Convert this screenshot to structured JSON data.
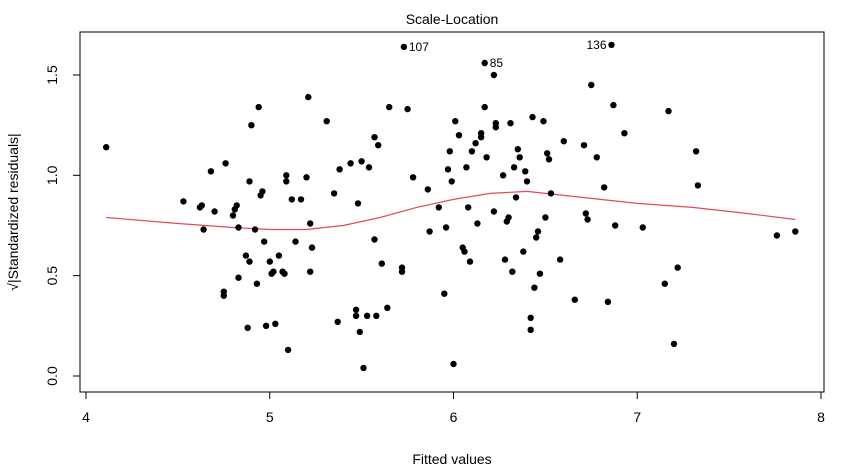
{
  "chart_data": {
    "type": "scatter",
    "title": "Scale-Location",
    "xlabel": "Fitted values",
    "ylabel": "√|Standardized residuals|",
    "xlim": [
      4,
      8
    ],
    "ylim": [
      0,
      1.7
    ],
    "xticks": [
      "4",
      "5",
      "6",
      "7",
      "8"
    ],
    "yticks": [
      "0.0",
      "0.5",
      "1.0",
      "1.5"
    ],
    "grid": false,
    "point_color": "#000000",
    "smooth_color": "#e0495a",
    "points": [
      [
        4.11,
        1.14
      ],
      [
        4.53,
        0.87
      ],
      [
        4.62,
        0.84
      ],
      [
        4.63,
        0.85
      ],
      [
        4.64,
        0.73
      ],
      [
        4.68,
        1.02
      ],
      [
        4.7,
        0.82
      ],
      [
        4.75,
        0.42
      ],
      [
        4.75,
        0.4
      ],
      [
        4.76,
        1.06
      ],
      [
        4.8,
        0.8
      ],
      [
        4.81,
        0.83
      ],
      [
        4.82,
        0.85
      ],
      [
        4.83,
        0.74
      ],
      [
        4.83,
        0.49
      ],
      [
        4.87,
        0.6
      ],
      [
        4.88,
        0.24
      ],
      [
        4.89,
        0.57
      ],
      [
        4.89,
        0.97
      ],
      [
        4.9,
        1.25
      ],
      [
        4.92,
        0.73
      ],
      [
        4.93,
        0.46
      ],
      [
        4.94,
        1.34
      ],
      [
        4.95,
        0.9
      ],
      [
        4.96,
        0.92
      ],
      [
        4.97,
        0.67
      ],
      [
        4.98,
        0.25
      ],
      [
        5.0,
        0.57
      ],
      [
        5.01,
        0.51
      ],
      [
        5.02,
        0.52
      ],
      [
        5.03,
        0.26
      ],
      [
        5.05,
        0.6
      ],
      [
        5.07,
        0.52
      ],
      [
        5.08,
        0.51
      ],
      [
        5.09,
        1.0
      ],
      [
        5.09,
        0.97
      ],
      [
        5.1,
        0.13
      ],
      [
        5.12,
        0.88
      ],
      [
        5.14,
        0.67
      ],
      [
        5.17,
        0.88
      ],
      [
        5.2,
        0.99
      ],
      [
        5.21,
        1.39
      ],
      [
        5.22,
        0.76
      ],
      [
        5.22,
        0.52
      ],
      [
        5.23,
        0.64
      ],
      [
        5.31,
        1.27
      ],
      [
        5.35,
        0.91
      ],
      [
        5.37,
        0.27
      ],
      [
        5.38,
        1.03
      ],
      [
        5.44,
        1.06
      ],
      [
        5.47,
        0.3
      ],
      [
        5.47,
        0.33
      ],
      [
        5.48,
        0.86
      ],
      [
        5.49,
        0.22
      ],
      [
        5.5,
        1.07
      ],
      [
        5.51,
        0.04
      ],
      [
        5.53,
        0.3
      ],
      [
        5.54,
        1.04
      ],
      [
        5.57,
        0.68
      ],
      [
        5.57,
        1.19
      ],
      [
        5.58,
        0.3
      ],
      [
        5.59,
        1.15
      ],
      [
        5.61,
        0.56
      ],
      [
        5.64,
        0.34
      ],
      [
        5.65,
        1.34
      ],
      [
        5.72,
        0.54
      ],
      [
        5.72,
        0.52
      ],
      [
        5.73,
        1.64
      ],
      [
        5.75,
        1.33
      ],
      [
        5.78,
        0.99
      ],
      [
        5.86,
        0.93
      ],
      [
        5.87,
        0.72
      ],
      [
        5.92,
        0.84
      ],
      [
        5.95,
        0.41
      ],
      [
        5.96,
        0.74
      ],
      [
        5.97,
        1.03
      ],
      [
        5.98,
        1.12
      ],
      [
        5.99,
        0.97
      ],
      [
        6.0,
        0.06
      ],
      [
        6.01,
        1.27
      ],
      [
        6.03,
        1.2
      ],
      [
        6.05,
        0.64
      ],
      [
        6.06,
        0.62
      ],
      [
        6.07,
        1.04
      ],
      [
        6.08,
        0.84
      ],
      [
        6.09,
        0.57
      ],
      [
        6.1,
        1.12
      ],
      [
        6.12,
        1.16
      ],
      [
        6.13,
        0.76
      ],
      [
        6.15,
        1.19
      ],
      [
        6.15,
        1.21
      ],
      [
        6.17,
        1.56
      ],
      [
        6.17,
        1.34
      ],
      [
        6.18,
        1.09
      ],
      [
        6.22,
        1.5
      ],
      [
        6.22,
        0.82
      ],
      [
        6.23,
        1.26
      ],
      [
        6.23,
        1.24
      ],
      [
        6.27,
        1.0
      ],
      [
        6.28,
        0.58
      ],
      [
        6.29,
        0.77
      ],
      [
        6.3,
        0.79
      ],
      [
        6.31,
        1.26
      ],
      [
        6.32,
        0.52
      ],
      [
        6.33,
        1.04
      ],
      [
        6.34,
        0.89
      ],
      [
        6.35,
        1.13
      ],
      [
        6.36,
        1.09
      ],
      [
        6.38,
        0.62
      ],
      [
        6.39,
        1.02
      ],
      [
        6.4,
        0.97
      ],
      [
        6.42,
        0.29
      ],
      [
        6.42,
        0.23
      ],
      [
        6.43,
        1.29
      ],
      [
        6.44,
        0.44
      ],
      [
        6.45,
        0.69
      ],
      [
        6.46,
        0.72
      ],
      [
        6.47,
        0.51
      ],
      [
        6.49,
        1.27
      ],
      [
        6.5,
        0.79
      ],
      [
        6.51,
        1.11
      ],
      [
        6.52,
        1.08
      ],
      [
        6.53,
        0.91
      ],
      [
        6.58,
        0.58
      ],
      [
        6.6,
        1.17
      ],
      [
        6.66,
        0.38
      ],
      [
        6.71,
        1.15
      ],
      [
        6.72,
        0.81
      ],
      [
        6.73,
        0.78
      ],
      [
        6.75,
        1.45
      ],
      [
        6.78,
        1.09
      ],
      [
        6.82,
        0.94
      ],
      [
        6.84,
        0.37
      ],
      [
        6.86,
        1.65
      ],
      [
        6.87,
        1.35
      ],
      [
        6.88,
        0.75
      ],
      [
        6.93,
        1.21
      ],
      [
        7.03,
        0.74
      ],
      [
        7.15,
        0.46
      ],
      [
        7.17,
        1.32
      ],
      [
        7.2,
        0.16
      ],
      [
        7.22,
        0.54
      ],
      [
        7.32,
        1.12
      ],
      [
        7.33,
        0.95
      ],
      [
        7.76,
        0.7
      ],
      [
        7.86,
        0.72
      ]
    ],
    "labeled_points": [
      {
        "label": "107",
        "x": 5.73,
        "y": 1.64,
        "side": "right"
      },
      {
        "label": "85",
        "x": 6.17,
        "y": 1.56,
        "side": "right"
      },
      {
        "label": "136",
        "x": 6.86,
        "y": 1.65,
        "side": "left"
      }
    ],
    "smooth_line": {
      "x": [
        4.11,
        4.5,
        4.8,
        5.0,
        5.2,
        5.4,
        5.6,
        5.8,
        6.0,
        6.2,
        6.4,
        6.6,
        6.8,
        7.0,
        7.3,
        7.6,
        7.86
      ],
      "y": [
        0.79,
        0.76,
        0.74,
        0.73,
        0.73,
        0.75,
        0.79,
        0.84,
        0.88,
        0.91,
        0.92,
        0.9,
        0.88,
        0.86,
        0.84,
        0.81,
        0.78
      ]
    }
  }
}
